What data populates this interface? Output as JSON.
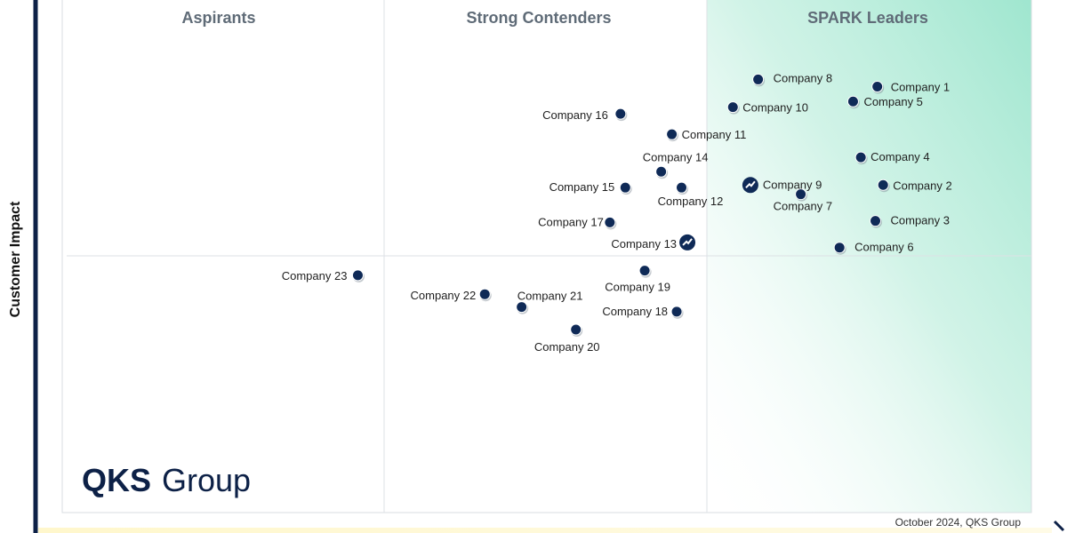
{
  "chart_data": {
    "type": "scatter",
    "title": "",
    "xlabel": "",
    "ylabel": "Customer Impact",
    "xlim": [
      0,
      100
    ],
    "ylim": [
      0,
      100
    ],
    "quadrants": [
      "Aspirants",
      "Strong Contenders",
      "SPARK Leaders"
    ],
    "footnote": "October 2024, QKS Group",
    "points": [
      {
        "label": "Company 1",
        "x": 84.1,
        "y": 83.1,
        "marker": "dot"
      },
      {
        "label": "Company 2",
        "x": 84.7,
        "y": 63.9,
        "marker": "dot"
      },
      {
        "label": "Company 3",
        "x": 83.9,
        "y": 56.9,
        "marker": "dot"
      },
      {
        "label": "Company 4",
        "x": 82.4,
        "y": 69.3,
        "marker": "dot"
      },
      {
        "label": "Company 5",
        "x": 81.6,
        "y": 80.2,
        "marker": "dot"
      },
      {
        "label": "Company 6",
        "x": 80.2,
        "y": 51.7,
        "marker": "dot"
      },
      {
        "label": "Company 7",
        "x": 76.2,
        "y": 62.1,
        "marker": "dot"
      },
      {
        "label": "Company 8",
        "x": 71.8,
        "y": 84.5,
        "marker": "dot"
      },
      {
        "label": "Company 9",
        "x": 71.0,
        "y": 63.9,
        "marker": "trend"
      },
      {
        "label": "Company 10",
        "x": 69.2,
        "y": 79.1,
        "marker": "dot"
      },
      {
        "label": "Company 11",
        "x": 62.9,
        "y": 73.8,
        "marker": "dot"
      },
      {
        "label": "Company 12",
        "x": 63.9,
        "y": 63.4,
        "marker": "dot"
      },
      {
        "label": "Company 13",
        "x": 64.5,
        "y": 52.7,
        "marker": "trend"
      },
      {
        "label": "Company 14",
        "x": 61.8,
        "y": 66.5,
        "marker": "dot"
      },
      {
        "label": "Company 15",
        "x": 58.1,
        "y": 63.4,
        "marker": "dot"
      },
      {
        "label": "Company 16",
        "x": 57.6,
        "y": 77.8,
        "marker": "dot"
      },
      {
        "label": "Company 17",
        "x": 56.5,
        "y": 56.6,
        "marker": "dot"
      },
      {
        "label": "Company 18",
        "x": 63.4,
        "y": 39.2,
        "marker": "dot"
      },
      {
        "label": "Company 19",
        "x": 60.1,
        "y": 47.2,
        "marker": "dot"
      },
      {
        "label": "Company 20",
        "x": 53.0,
        "y": 35.7,
        "marker": "dot"
      },
      {
        "label": "Company 21",
        "x": 47.4,
        "y": 40.1,
        "marker": "dot"
      },
      {
        "label": "Company 22",
        "x": 43.6,
        "y": 42.6,
        "marker": "dot"
      },
      {
        "label": "Company 23",
        "x": 30.5,
        "y": 46.3,
        "marker": "dot"
      }
    ]
  },
  "logo": {
    "bold": "QKS",
    "light": "Group"
  },
  "colors": {
    "marker": "#0f2a57",
    "leader_gradient": "#9fe6cf",
    "axis": "#0d2147",
    "quadrant_title": "#5f6b77"
  }
}
